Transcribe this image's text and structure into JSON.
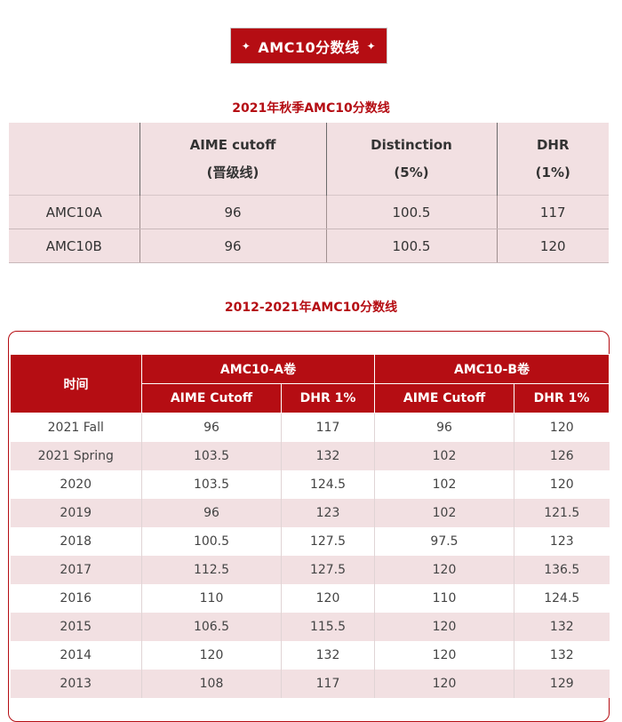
{
  "banner": {
    "star_left": "✦",
    "title": "AMC10分数线",
    "star_right": "✦"
  },
  "table1": {
    "title": "2021年秋季AMC10分数线",
    "headers": [
      {
        "line1": "",
        "line2": ""
      },
      {
        "line1": "AIME cutoff",
        "line2": "(晋级线)"
      },
      {
        "line1": "Distinction",
        "line2": "(5%)"
      },
      {
        "line1": "DHR",
        "line2": "(1%)"
      }
    ],
    "rows": [
      [
        "AMC10A",
        "96",
        "100.5",
        "117"
      ],
      [
        "AMC10B",
        "96",
        "100.5",
        "120"
      ]
    ]
  },
  "table2": {
    "title": "2012-2021年AMC10分数线",
    "col_time": "时间",
    "group_a": "AMC10-A卷",
    "group_b": "AMC10-B卷",
    "sub_headers": [
      "AIME Cutoff",
      "DHR 1%",
      "AIME Cutoff",
      "DHR 1%"
    ],
    "rows": [
      [
        "2021 Fall",
        "96",
        "117",
        "96",
        "120"
      ],
      [
        "2021 Spring",
        "103.5",
        "132",
        "102",
        "126"
      ],
      [
        "2020",
        "103.5",
        "124.5",
        "102",
        "120"
      ],
      [
        "2019",
        "96",
        "123",
        "102",
        "121.5"
      ],
      [
        "2018",
        "100.5",
        "127.5",
        "97.5",
        "123"
      ],
      [
        "2017",
        "112.5",
        "127.5",
        "120",
        "136.5"
      ],
      [
        "2016",
        "110",
        "120",
        "110",
        "124.5"
      ],
      [
        "2015",
        "106.5",
        "115.5",
        "120",
        "132"
      ],
      [
        "2014",
        "120",
        "132",
        "120",
        "132"
      ],
      [
        "2013",
        "108",
        "117",
        "120",
        "129"
      ]
    ]
  },
  "colors": {
    "accent": "#b50d13",
    "row_tint": "#f2e0e2"
  }
}
